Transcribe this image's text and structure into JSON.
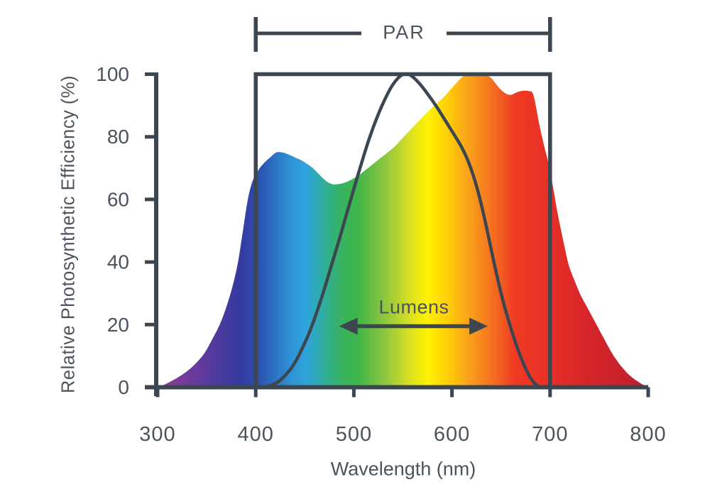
{
  "colors": {
    "background": "#FFFFFF",
    "ink": "#3C4650",
    "text": "#4A535E"
  },
  "chart_data": {
    "type": "area",
    "title": "",
    "xlabel": "Wavelength (nm)",
    "ylabel": "Relative Photosynthetic Efficiency (%)",
    "xlim": [
      300,
      800
    ],
    "ylim": [
      0,
      100
    ],
    "x_ticks": [
      300,
      400,
      500,
      600,
      700,
      800
    ],
    "y_ticks": [
      0,
      20,
      40,
      60,
      80,
      100
    ],
    "grid": false,
    "legend": "none",
    "series": [
      {
        "name": "photosynthetic_efficiency",
        "type": "area",
        "fill": "spectrum_gradient",
        "points": [
          [
            300,
            0
          ],
          [
            308,
            1
          ],
          [
            316,
            2.3
          ],
          [
            324,
            3.8
          ],
          [
            332,
            5.6
          ],
          [
            340,
            8
          ],
          [
            348,
            11
          ],
          [
            356,
            15.5
          ],
          [
            364,
            20.5
          ],
          [
            371,
            26.5
          ],
          [
            377,
            33
          ],
          [
            382,
            40
          ],
          [
            387,
            50
          ],
          [
            392,
            60
          ],
          [
            397,
            66
          ],
          [
            403,
            69.5
          ],
          [
            409,
            71.8
          ],
          [
            415,
            73.5
          ],
          [
            421,
            75
          ],
          [
            427,
            75
          ],
          [
            433,
            74.4
          ],
          [
            440,
            73.4
          ],
          [
            447,
            72.4
          ],
          [
            453,
            71.2
          ],
          [
            459,
            69.8
          ],
          [
            464,
            68.2
          ],
          [
            469,
            66.6
          ],
          [
            474,
            65.4
          ],
          [
            479,
            64.8
          ],
          [
            485,
            64.9
          ],
          [
            491,
            65.4
          ],
          [
            498,
            66.4
          ],
          [
            505,
            67.7
          ],
          [
            512,
            69.4
          ],
          [
            520,
            71.4
          ],
          [
            528,
            73.4
          ],
          [
            536,
            75.4
          ],
          [
            543,
            77.3
          ],
          [
            550,
            79.7
          ],
          [
            557,
            82
          ],
          [
            564,
            84.3
          ],
          [
            571,
            86.6
          ],
          [
            578,
            88.8
          ],
          [
            585,
            90.8
          ],
          [
            592,
            92.8
          ],
          [
            598,
            94.9
          ],
          [
            604,
            97
          ],
          [
            610,
            99
          ],
          [
            616,
            99.9
          ],
          [
            624,
            100
          ],
          [
            632,
            99.8
          ],
          [
            639,
            99
          ],
          [
            645,
            96.8
          ],
          [
            650,
            95
          ],
          [
            655,
            93.8
          ],
          [
            660,
            93.4
          ],
          [
            666,
            94.2
          ],
          [
            672,
            94.7
          ],
          [
            678,
            94.6
          ],
          [
            683,
            93.3
          ],
          [
            689,
            84
          ],
          [
            694,
            77
          ],
          [
            698,
            72
          ],
          [
            703,
            64
          ],
          [
            708,
            55
          ],
          [
            714,
            46
          ],
          [
            719,
            39
          ],
          [
            725,
            34
          ],
          [
            731,
            29.5
          ],
          [
            737,
            26
          ],
          [
            743,
            22.5
          ],
          [
            749,
            19
          ],
          [
            755,
            15.5
          ],
          [
            761,
            12
          ],
          [
            767,
            9
          ],
          [
            773,
            6.5
          ],
          [
            779,
            4.4
          ],
          [
            785,
            2.8
          ],
          [
            791,
            1.5
          ],
          [
            796,
            0.6
          ],
          [
            800,
            0.2
          ]
        ]
      },
      {
        "name": "luminosity_curve",
        "type": "line",
        "color": "#3C4650",
        "points": [
          [
            410,
            0
          ],
          [
            417,
            0.8
          ],
          [
            424,
            2
          ],
          [
            430,
            3.8
          ],
          [
            436,
            6
          ],
          [
            442,
            9
          ],
          [
            448,
            12.8
          ],
          [
            454,
            17
          ],
          [
            460,
            22
          ],
          [
            466,
            27.5
          ],
          [
            472,
            33.5
          ],
          [
            478,
            39.8
          ],
          [
            484,
            46
          ],
          [
            490,
            52.5
          ],
          [
            496,
            59
          ],
          [
            502,
            65.5
          ],
          [
            508,
            71.8
          ],
          [
            514,
            77.8
          ],
          [
            520,
            83.2
          ],
          [
            526,
            88
          ],
          [
            532,
            92.2
          ],
          [
            538,
            95.8
          ],
          [
            544,
            98.4
          ],
          [
            550,
            99.9
          ],
          [
            556,
            99.9
          ],
          [
            562,
            98.6
          ],
          [
            568,
            96.6
          ],
          [
            574,
            94.2
          ],
          [
            580,
            91.6
          ],
          [
            586,
            88.8
          ],
          [
            592,
            85.8
          ],
          [
            598,
            82.8
          ],
          [
            604,
            79.8
          ],
          [
            610,
            76.6
          ],
          [
            616,
            72.6
          ],
          [
            622,
            67.4
          ],
          [
            628,
            60.8
          ],
          [
            634,
            52.8
          ],
          [
            640,
            44
          ],
          [
            646,
            35.4
          ],
          [
            652,
            27.6
          ],
          [
            658,
            21
          ],
          [
            664,
            15
          ],
          [
            670,
            9.8
          ],
          [
            675,
            6
          ],
          [
            680,
            3
          ],
          [
            685,
            1
          ],
          [
            690,
            0
          ]
        ]
      }
    ],
    "spectrum_gradient": [
      {
        "nm": 300,
        "color": "#913D93"
      },
      {
        "nm": 338,
        "color": "#693A9B"
      },
      {
        "nm": 362,
        "color": "#4B3A9D"
      },
      {
        "nm": 383,
        "color": "#35399E"
      },
      {
        "nm": 400,
        "color": "#2C4CAC"
      },
      {
        "nm": 417,
        "color": "#2C6DC1"
      },
      {
        "nm": 435,
        "color": "#2E92D3"
      },
      {
        "nm": 451,
        "color": "#2FA3DC"
      },
      {
        "nm": 465,
        "color": "#2FACAF"
      },
      {
        "nm": 478,
        "color": "#33B07D"
      },
      {
        "nm": 491,
        "color": "#3AB45A"
      },
      {
        "nm": 504,
        "color": "#3FB549"
      },
      {
        "nm": 531,
        "color": "#8CC63F"
      },
      {
        "nm": 556,
        "color": "#D7DF23"
      },
      {
        "nm": 575,
        "color": "#FFF200"
      },
      {
        "nm": 597,
        "color": "#FECB08"
      },
      {
        "nm": 617,
        "color": "#FAA21B"
      },
      {
        "nm": 641,
        "color": "#F4701F"
      },
      {
        "nm": 664,
        "color": "#EF3B24"
      },
      {
        "nm": 694,
        "color": "#E93026"
      },
      {
        "nm": 740,
        "color": "#D5252A"
      },
      {
        "nm": 800,
        "color": "#BE1E2D"
      }
    ],
    "annotations": {
      "par": {
        "label": "PAR",
        "from_nm": 400,
        "to_nm": 700
      },
      "par_box": {
        "from_nm": 400,
        "to_nm": 700,
        "from_percent": 0,
        "to_percent": 100
      },
      "lumens": {
        "label": "Lumens",
        "from_nm": 485,
        "to_nm": 636.5,
        "at_percent": 19.5
      }
    }
  }
}
